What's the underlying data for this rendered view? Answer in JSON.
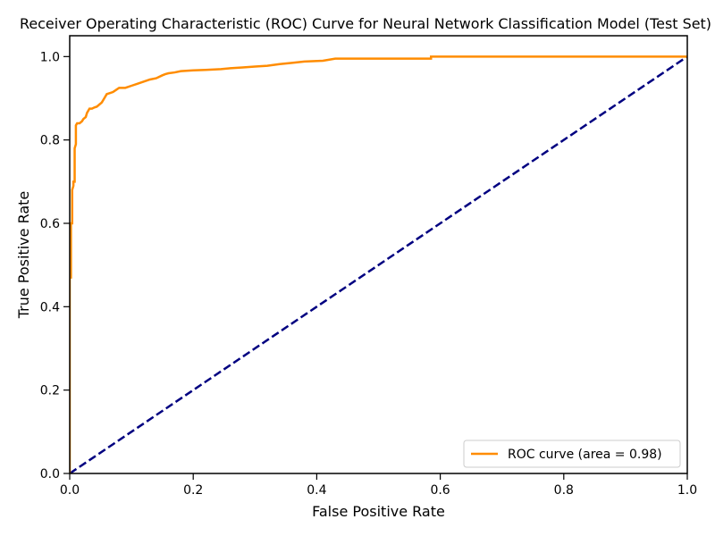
{
  "chart_data": {
    "type": "line",
    "title": "Receiver Operating Characteristic (ROC) Curve for Neural Network Classification Model (Test Set)",
    "xlabel": "False Positive Rate",
    "ylabel": "True Positive Rate",
    "xlim": [
      0,
      1
    ],
    "ylim": [
      0,
      1.05
    ],
    "xticks": [
      "0.0",
      "0.2",
      "0.4",
      "0.6",
      "0.8",
      "1.0"
    ],
    "yticks": [
      "0.0",
      "0.2",
      "0.4",
      "0.6",
      "0.8",
      "1.0"
    ],
    "grid": false,
    "legend_position": "lower-right",
    "series": [
      {
        "name": "ROC curve (area = 0.98)",
        "color": "#ff8c00",
        "style": "solid",
        "x": [
          0.0,
          0.0,
          0.002,
          0.002,
          0.004,
          0.004,
          0.006,
          0.006,
          0.008,
          0.008,
          0.01,
          0.01,
          0.012,
          0.016,
          0.02,
          0.022,
          0.026,
          0.028,
          0.03,
          0.032,
          0.036,
          0.04,
          0.044,
          0.048,
          0.052,
          0.056,
          0.06,
          0.064,
          0.07,
          0.075,
          0.08,
          0.09,
          0.1,
          0.11,
          0.12,
          0.13,
          0.14,
          0.15,
          0.155,
          0.16,
          0.17,
          0.18,
          0.2,
          0.22,
          0.245,
          0.26,
          0.28,
          0.3,
          0.32,
          0.34,
          0.36,
          0.38,
          0.41,
          0.43,
          0.5,
          0.585,
          0.585,
          0.7,
          0.8,
          1.0
        ],
        "y": [
          0.0,
          0.47,
          0.47,
          0.6,
          0.6,
          0.68,
          0.69,
          0.7,
          0.7,
          0.78,
          0.79,
          0.835,
          0.84,
          0.84,
          0.845,
          0.85,
          0.855,
          0.865,
          0.87,
          0.875,
          0.875,
          0.878,
          0.88,
          0.885,
          0.89,
          0.9,
          0.91,
          0.912,
          0.915,
          0.92,
          0.925,
          0.925,
          0.93,
          0.935,
          0.94,
          0.945,
          0.948,
          0.955,
          0.958,
          0.96,
          0.962,
          0.965,
          0.967,
          0.968,
          0.97,
          0.972,
          0.974,
          0.976,
          0.978,
          0.982,
          0.985,
          0.988,
          0.99,
          0.995,
          0.995,
          0.995,
          1.0,
          1.0,
          1.0,
          1.0
        ]
      },
      {
        "name": "",
        "color": "#000080",
        "style": "dashed",
        "x": [
          0,
          1
        ],
        "y": [
          0,
          1
        ]
      }
    ]
  }
}
